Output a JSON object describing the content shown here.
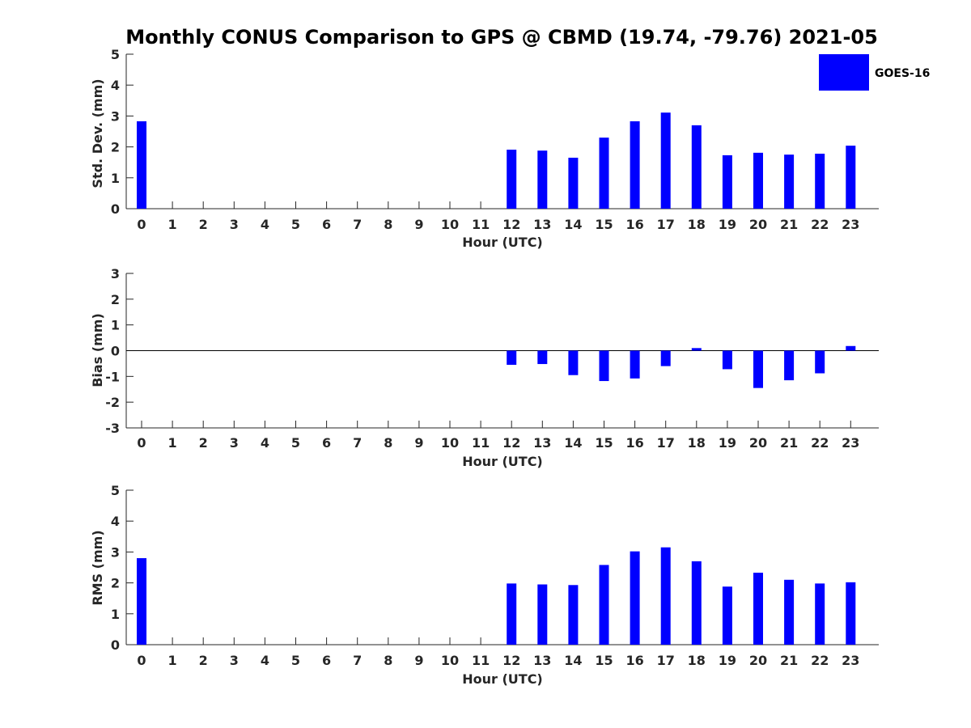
{
  "title": "Monthly CONUS Comparison to GPS @ CBMD (19.74, -79.76) 2021-05",
  "legend": {
    "label": "GOES-16",
    "color": "#0000FF"
  },
  "chart_data": [
    {
      "type": "bar",
      "categories": [
        "0",
        "1",
        "2",
        "3",
        "4",
        "5",
        "6",
        "7",
        "8",
        "9",
        "10",
        "11",
        "12",
        "13",
        "14",
        "15",
        "16",
        "17",
        "18",
        "19",
        "20",
        "21",
        "22",
        "23"
      ],
      "values": [
        2.83,
        null,
        null,
        null,
        null,
        null,
        null,
        null,
        null,
        null,
        null,
        null,
        1.91,
        1.88,
        1.65,
        2.3,
        2.83,
        3.11,
        2.7,
        1.73,
        1.81,
        1.75,
        1.78,
        2.04
      ],
      "series": [
        {
          "name": "GOES-16"
        }
      ],
      "xlabel": "Hour (UTC)",
      "ylabel": "Std. Dev. (mm)",
      "ylim": [
        0,
        5
      ],
      "yticks": [
        "0",
        "1",
        "2",
        "3",
        "4",
        "5"
      ],
      "color": "#0000FF"
    },
    {
      "type": "bar",
      "categories": [
        "0",
        "1",
        "2",
        "3",
        "4",
        "5",
        "6",
        "7",
        "8",
        "9",
        "10",
        "11",
        "12",
        "13",
        "14",
        "15",
        "16",
        "17",
        "18",
        "19",
        "20",
        "21",
        "22",
        "23"
      ],
      "values": [
        null,
        null,
        null,
        null,
        null,
        null,
        null,
        null,
        null,
        null,
        null,
        null,
        -0.55,
        -0.52,
        -0.95,
        -1.18,
        -1.08,
        -0.6,
        0.1,
        -0.72,
        -1.45,
        -1.15,
        -0.88,
        0.18
      ],
      "series": [
        {
          "name": "GOES-16"
        }
      ],
      "xlabel": "Hour (UTC)",
      "ylabel": "Bias (mm)",
      "ylim": [
        -3,
        3
      ],
      "yticks": [
        "-3",
        "-2",
        "-1",
        "0",
        "1",
        "2",
        "3"
      ],
      "color": "#0000FF"
    },
    {
      "type": "bar",
      "categories": [
        "0",
        "1",
        "2",
        "3",
        "4",
        "5",
        "6",
        "7",
        "8",
        "9",
        "10",
        "11",
        "12",
        "13",
        "14",
        "15",
        "16",
        "17",
        "18",
        "19",
        "20",
        "21",
        "22",
        "23"
      ],
      "values": [
        2.8,
        null,
        null,
        null,
        null,
        null,
        null,
        null,
        null,
        null,
        null,
        null,
        1.98,
        1.95,
        1.93,
        2.58,
        3.02,
        3.15,
        2.7,
        1.88,
        2.33,
        2.1,
        1.98,
        2.02
      ],
      "series": [
        {
          "name": "GOES-16"
        }
      ],
      "xlabel": "Hour (UTC)",
      "ylabel": "RMS (mm)",
      "ylim": [
        0,
        5
      ],
      "yticks": [
        "0",
        "1",
        "2",
        "3",
        "4",
        "5"
      ],
      "color": "#0000FF"
    }
  ]
}
